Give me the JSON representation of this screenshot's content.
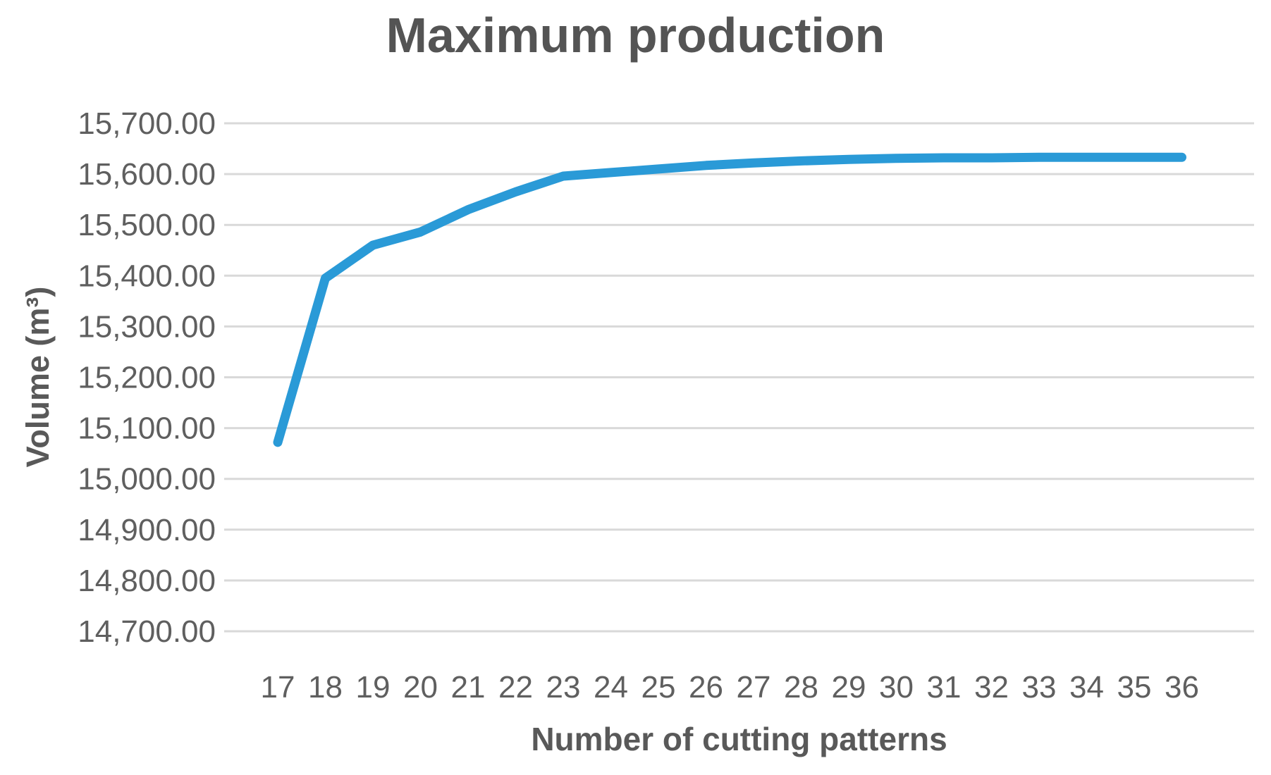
{
  "chart_data": {
    "type": "line",
    "title": "Maximum production",
    "xlabel": "Number of cutting patterns",
    "ylabel": "Volume (m³)",
    "x": [
      17,
      18,
      19,
      20,
      21,
      22,
      23,
      24,
      25,
      26,
      27,
      28,
      29,
      30,
      31,
      32,
      33,
      34,
      35,
      36
    ],
    "x_tick_labels": [
      "17",
      "18",
      "19",
      "20",
      "21",
      "22",
      "23",
      "24",
      "25",
      "26",
      "27",
      "28",
      "29",
      "30",
      "31",
      "32",
      "33",
      "34",
      "35",
      "36"
    ],
    "values": [
      15072,
      15395,
      15460,
      15486,
      15530,
      15565,
      15596,
      15603,
      15610,
      15617,
      15622,
      15626,
      15629,
      15631,
      15632,
      15632,
      15633,
      15633,
      15633,
      15633
    ],
    "ylim": [
      14700,
      15700
    ],
    "y_tick_values": [
      15700,
      15600,
      15500,
      15400,
      15300,
      15200,
      15100,
      15000,
      14900,
      14800,
      14700
    ],
    "y_tick_labels": [
      "15,700.00",
      "15,600.00",
      "15,500.00",
      "15,400.00",
      "15,300.00",
      "15,200.00",
      "15,100.00",
      "15,000.00",
      "14,900.00",
      "14,800.00",
      "14,700.00"
    ],
    "grid": "horizontal",
    "legend": "none",
    "colors": {
      "line": "#2a9ad7",
      "gridline": "#d9d9d9",
      "title_text": "#545454",
      "axis_title_text": "#595959",
      "tick_text": "#5f5f5f",
      "background": "#ffffff"
    }
  }
}
